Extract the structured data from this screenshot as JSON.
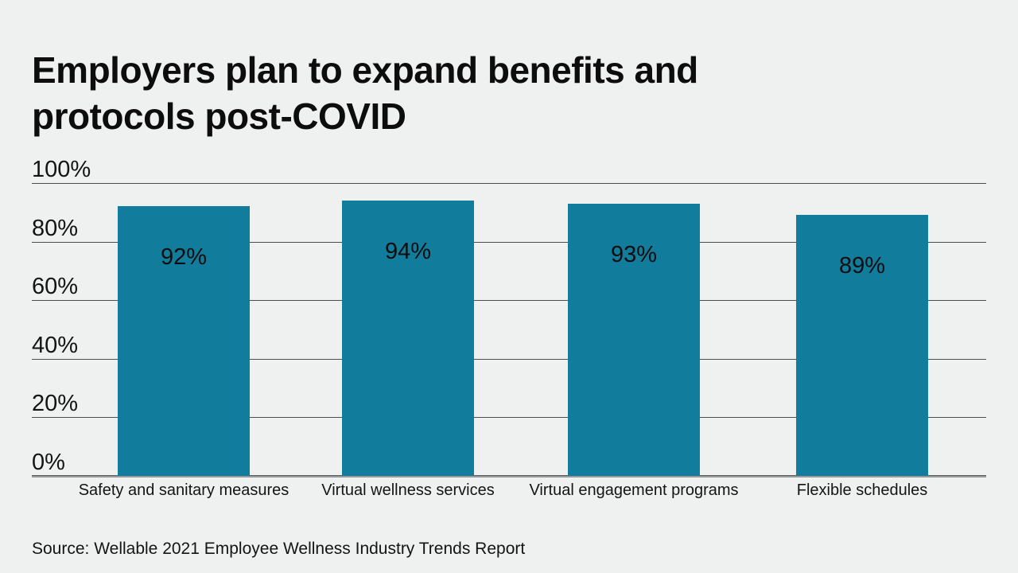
{
  "header": {
    "title": "Employers plan to expand benefits and protocols post-COVID"
  },
  "footer": {
    "source": "Source: Wellable 2021 Employee Wellness Industry Trends Report"
  },
  "colors": {
    "background": "#eff1f0",
    "bar": "#117c9c",
    "gridline": "#4b4e50",
    "axis_line": "#97999b",
    "text": "#141414"
  },
  "chart_data": {
    "type": "bar",
    "title": "Employers plan to expand benefits and protocols post-COVID",
    "categories": [
      "Safety and sanitary measures",
      "Virtual wellness services",
      "Virtual engagement programs",
      "Flexible schedules"
    ],
    "values": [
      92,
      94,
      93,
      89
    ],
    "value_labels": [
      "92%",
      "94%",
      "93%",
      "89%"
    ],
    "value_label_position": "inside-top",
    "xlabel": "",
    "ylabel": "",
    "ylim": [
      0,
      100
    ],
    "yticks": [
      0,
      20,
      40,
      60,
      80,
      100
    ],
    "ytick_labels": [
      "0%",
      "20%",
      "40%",
      "60%",
      "80%",
      "100%"
    ],
    "grid": true,
    "legend": false,
    "source": "Source: Wellable 2021 Employee Wellness Industry Trends Report"
  }
}
